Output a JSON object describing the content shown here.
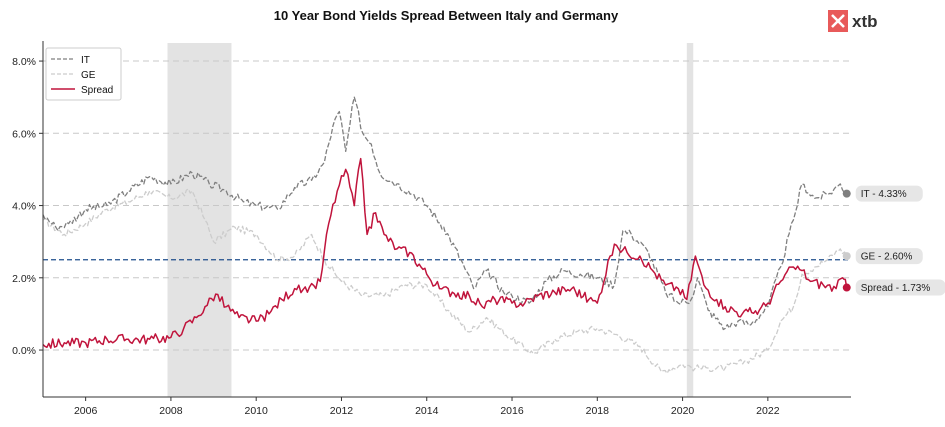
{
  "brand": {
    "name": "xtb",
    "color": "#e85a5a"
  },
  "colors": {
    "it": "#7f7f7f",
    "ge": "#cccccc",
    "spread": "#c0143c",
    "reference": "#1f4e8c",
    "shade": "#e3e3e3"
  },
  "chart_data": {
    "type": "line",
    "title": "10 Year Bond Yields Spread Between Italy and Germany",
    "xlabel": "",
    "ylabel": "",
    "xlim": [
      2005.0,
      2023.95
    ],
    "ylim": [
      -1.3,
      8.5
    ],
    "x_ticks": [
      2006,
      2008,
      2010,
      2012,
      2014,
      2016,
      2018,
      2020,
      2022
    ],
    "y_ticks": [
      0,
      2,
      4,
      6,
      8
    ],
    "y_tick_labels": [
      "0.0%",
      "2.0%",
      "4.0%",
      "6.0%",
      "8.0%"
    ],
    "grid": "horizontal dashed",
    "legend_position": "top-left",
    "reference_line": {
      "y": 2.5,
      "style": "dashed"
    },
    "shaded_periods": [
      [
        2007.92,
        2009.42
      ],
      [
        2020.1,
        2020.25
      ]
    ],
    "series": [
      {
        "name": "IT",
        "style": "dashed",
        "end_label": "IT - 4.33%",
        "x": [
          2005.0,
          2005.3,
          2005.6,
          2006.0,
          2006.5,
          2007.0,
          2007.5,
          2008.0,
          2008.5,
          2008.9,
          2009.3,
          2009.7,
          2010.0,
          2010.5,
          2010.9,
          2011.3,
          2011.6,
          2011.8,
          2011.95,
          2012.1,
          2012.3,
          2012.5,
          2012.7,
          2012.9,
          2013.3,
          2013.7,
          2014.0,
          2014.4,
          2014.8,
          2015.1,
          2015.4,
          2015.8,
          2016.0,
          2016.4,
          2016.8,
          2017.2,
          2017.6,
          2018.0,
          2018.4,
          2018.6,
          2018.8,
          2019.2,
          2019.6,
          2019.9,
          2020.2,
          2020.35,
          2020.6,
          2021.0,
          2021.3,
          2021.6,
          2022.0,
          2022.3,
          2022.6,
          2022.8,
          2023.1,
          2023.4,
          2023.7,
          2023.85
        ],
        "y": [
          3.75,
          3.4,
          3.5,
          3.9,
          4.0,
          4.4,
          4.8,
          4.6,
          4.9,
          4.6,
          4.4,
          4.1,
          4.0,
          3.9,
          4.5,
          4.7,
          5.2,
          6.2,
          6.6,
          5.5,
          7.0,
          6.0,
          5.7,
          4.9,
          4.6,
          4.3,
          4.0,
          3.4,
          2.5,
          1.7,
          2.2,
          1.6,
          1.5,
          1.3,
          1.9,
          2.2,
          2.1,
          2.0,
          1.8,
          3.3,
          3.2,
          2.7,
          1.6,
          1.3,
          1.4,
          2.0,
          1.1,
          0.6,
          0.8,
          0.7,
          1.2,
          2.3,
          3.6,
          4.6,
          4.2,
          4.3,
          4.6,
          4.33
        ]
      },
      {
        "name": "GE",
        "style": "dashed",
        "end_label": "GE - 2.60%",
        "x": [
          2005.0,
          2005.5,
          2006.0,
          2006.5,
          2007.0,
          2007.5,
          2008.0,
          2008.5,
          2008.8,
          2009.0,
          2009.5,
          2010.0,
          2010.5,
          2010.9,
          2011.3,
          2011.6,
          2012.0,
          2012.5,
          2013.0,
          2013.5,
          2014.0,
          2014.5,
          2015.0,
          2015.4,
          2016.0,
          2016.5,
          2017.0,
          2017.5,
          2018.0,
          2018.5,
          2019.0,
          2019.5,
          2020.0,
          2020.3,
          2020.6,
          2021.0,
          2021.5,
          2022.0,
          2022.3,
          2022.6,
          2022.8,
          2023.1,
          2023.4,
          2023.7,
          2023.85
        ],
        "y": [
          3.6,
          3.2,
          3.5,
          3.9,
          4.1,
          4.4,
          4.2,
          4.4,
          3.6,
          3.0,
          3.4,
          3.2,
          2.5,
          2.6,
          3.2,
          2.5,
          1.9,
          1.5,
          1.5,
          1.8,
          1.8,
          1.1,
          0.5,
          0.9,
          0.3,
          -0.1,
          0.3,
          0.5,
          0.6,
          0.4,
          0.1,
          -0.6,
          -0.4,
          -0.5,
          -0.5,
          -0.5,
          -0.3,
          0.0,
          0.8,
          1.2,
          2.1,
          2.3,
          2.5,
          2.8,
          2.6
        ]
      },
      {
        "name": "Spread",
        "style": "solid",
        "end_label": "Spread - 1.73%",
        "x": [
          2005.0,
          2005.5,
          2006.0,
          2006.5,
          2007.0,
          2007.5,
          2008.0,
          2008.3,
          2008.6,
          2008.8,
          2009.05,
          2009.3,
          2009.6,
          2010.0,
          2010.3,
          2010.6,
          2010.9,
          2011.2,
          2011.5,
          2011.7,
          2011.9,
          2012.1,
          2012.3,
          2012.45,
          2012.6,
          2012.8,
          2013.0,
          2013.3,
          2013.6,
          2014.0,
          2014.3,
          2014.6,
          2015.0,
          2015.3,
          2015.6,
          2016.0,
          2016.3,
          2016.6,
          2017.0,
          2017.4,
          2017.8,
          2018.0,
          2018.3,
          2018.45,
          2018.7,
          2019.0,
          2019.3,
          2019.6,
          2019.9,
          2020.1,
          2020.3,
          2020.5,
          2020.8,
          2021.0,
          2021.4,
          2021.8,
          2022.0,
          2022.3,
          2022.6,
          2022.8,
          2023.0,
          2023.3,
          2023.6,
          2023.75,
          2023.85
        ],
        "y": [
          0.15,
          0.2,
          0.2,
          0.3,
          0.3,
          0.3,
          0.35,
          0.6,
          0.9,
          1.2,
          1.55,
          1.2,
          0.9,
          0.8,
          1.0,
          1.4,
          1.7,
          1.6,
          1.9,
          3.5,
          4.4,
          5.0,
          4.0,
          5.3,
          3.2,
          3.8,
          3.2,
          2.8,
          2.7,
          2.1,
          1.7,
          1.6,
          1.5,
          1.2,
          1.4,
          1.3,
          1.3,
          1.5,
          1.6,
          1.7,
          1.4,
          1.3,
          2.6,
          2.9,
          2.7,
          2.6,
          2.2,
          1.8,
          1.7,
          1.4,
          2.6,
          1.8,
          1.4,
          1.2,
          1.0,
          1.1,
          1.3,
          1.9,
          2.3,
          2.2,
          1.9,
          1.8,
          1.7,
          2.0,
          1.73
        ]
      }
    ]
  }
}
